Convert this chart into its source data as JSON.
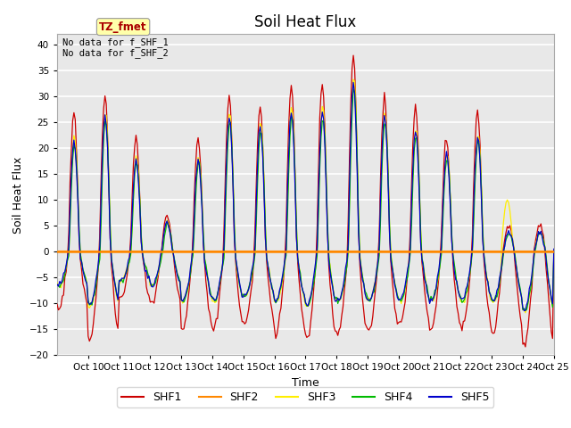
{
  "title": "Soil Heat Flux",
  "ylabel": "Soil Heat Flux",
  "xlabel": "Time",
  "ylim": [
    -20,
    42
  ],
  "yticks": [
    -20,
    -15,
    -10,
    -5,
    0,
    5,
    10,
    15,
    20,
    25,
    30,
    35,
    40
  ],
  "colors": {
    "SHF1": "#cc0000",
    "SHF2": "#ff8800",
    "SHF3": "#ffee00",
    "SHF4": "#00bb00",
    "SHF5": "#0000cc"
  },
  "annotation_text": "No data for f_SHF_1\nNo data for f_SHF_2",
  "box_label": "TZ_fmet",
  "box_color": "#ffffaa",
  "box_text_color": "#aa0000",
  "background_color": "#e8e8e8",
  "grid_color": "#ffffff",
  "hline_color": "#ff8800",
  "legend_entries": [
    "SHF1",
    "SHF2",
    "SHF3",
    "SHF4",
    "SHF5"
  ],
  "figsize": [
    6.4,
    4.8
  ],
  "dpi": 100
}
